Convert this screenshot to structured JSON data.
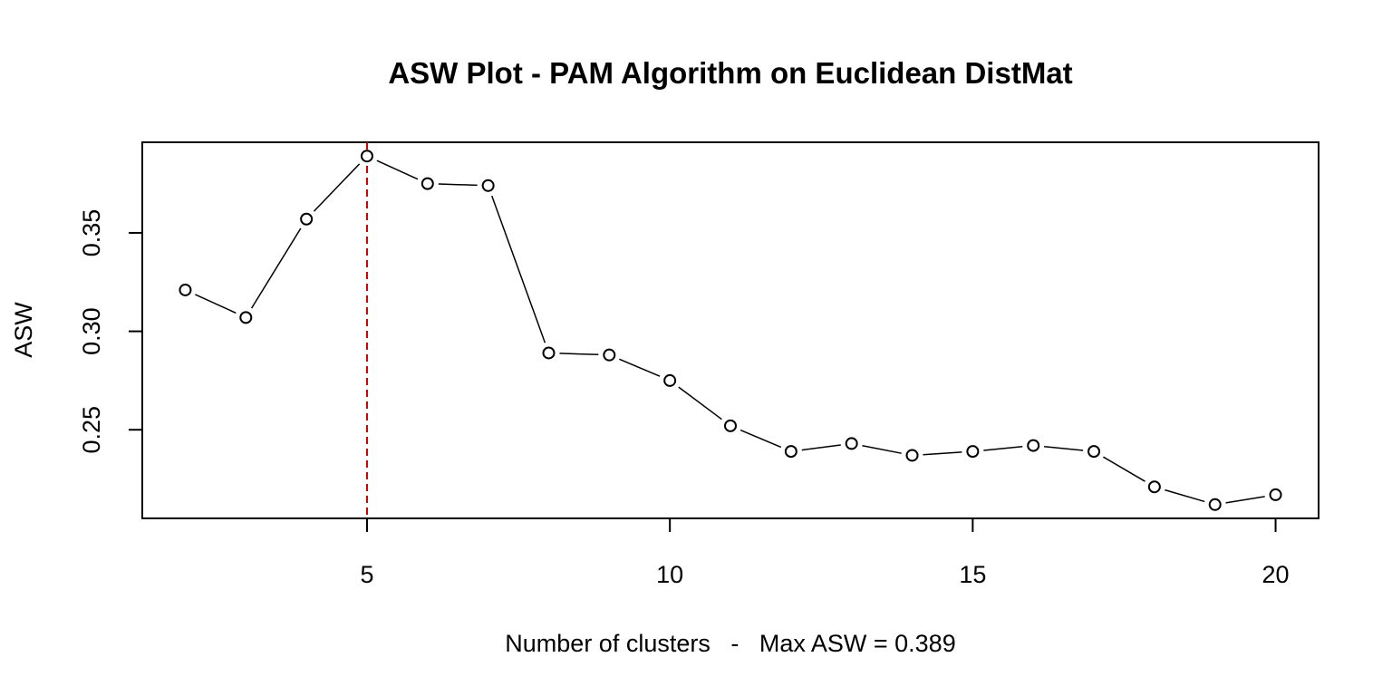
{
  "chart_data": {
    "type": "line",
    "title": "ASW Plot - PAM Algorithm on Euclidean DistMat",
    "xlabel": "Number of clusters   -   Max ASW = 0.389",
    "ylabel": "ASW",
    "x": [
      2,
      3,
      4,
      5,
      6,
      7,
      8,
      9,
      10,
      11,
      12,
      13,
      14,
      15,
      16,
      17,
      18,
      19,
      20
    ],
    "y": [
      0.321,
      0.307,
      0.357,
      0.389,
      0.375,
      0.374,
      0.289,
      0.288,
      0.275,
      0.252,
      0.239,
      0.243,
      0.237,
      0.239,
      0.242,
      0.239,
      0.221,
      0.212,
      0.217
    ],
    "xlim": [
      1.29,
      20.71
    ],
    "ylim": [
      0.205,
      0.396
    ],
    "x_ticks": [
      5,
      10,
      15,
      20
    ],
    "x_tick_labels": [
      "5",
      "10",
      "15",
      "20"
    ],
    "y_ticks": [
      0.25,
      0.3,
      0.35
    ],
    "y_tick_labels": [
      "0.25",
      "0.30",
      "0.35"
    ],
    "marker": "open-circle",
    "line_color": "#000000",
    "highlight": {
      "x": 5,
      "color": "#cc0000",
      "style": "dashed"
    },
    "grid": false,
    "legend": "none"
  }
}
